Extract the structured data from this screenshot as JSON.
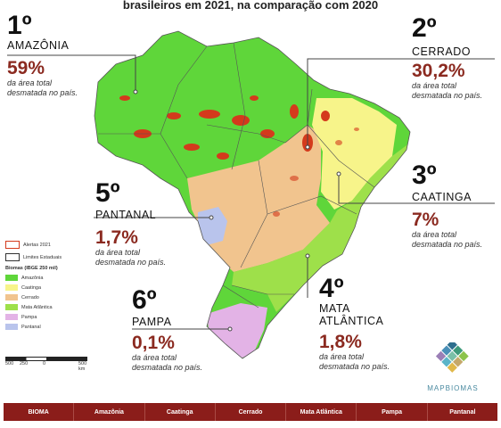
{
  "title": "brasileiros em 2021, na comparação com 2020",
  "rankings": [
    {
      "rank": "1º",
      "biome": "AMAZÔNIA",
      "pct": "59%",
      "desc1": "da área total",
      "desc2": "desmatada no país."
    },
    {
      "rank": "2º",
      "biome": "CERRADO",
      "pct": "30,2%",
      "desc1": "da área total",
      "desc2": "desmatada no país."
    },
    {
      "rank": "3º",
      "biome": "CAATINGA",
      "pct": "7%",
      "desc1": "da área total",
      "desc2": "desmatada no país."
    },
    {
      "rank": "4º",
      "biome1": "MATA",
      "biome2": "ATLÂNTICA",
      "pct": "1,8%",
      "desc1": "da área total",
      "desc2": "desmatada no país."
    },
    {
      "rank": "5º",
      "biome": "PANTANAL",
      "pct": "1,7%",
      "desc1": "da área total",
      "desc2": "desmatada no país."
    },
    {
      "rank": "6º",
      "biome": "PAMPA",
      "pct": "0,1%",
      "desc1": "da área total",
      "desc2": "desmatada no país."
    }
  ],
  "legend": {
    "alerts": "Alertas 2021",
    "limits": "Limites Estaduais",
    "biomes_title": "Biomas (IBGE 250 mil)",
    "items": [
      {
        "label": "Amazônia",
        "color": "#5fd63a"
      },
      {
        "label": "Caatinga",
        "color": "#f7f48a"
      },
      {
        "label": "Cerrado",
        "color": "#f1c48e"
      },
      {
        "label": "Mata Atlântica",
        "color": "#9ee04a"
      },
      {
        "label": "Pampa",
        "color": "#e3b3e6"
      },
      {
        "label": "Pantanal",
        "color": "#b9c4ec"
      }
    ],
    "alert_color": "#d43a1c"
  },
  "scale": {
    "t0": "500",
    "t1": "250",
    "t2": "0",
    "t3": "500 km"
  },
  "logo": "MAPBIOMAS",
  "table_headers": [
    "BIOMA",
    "Amazônia",
    "Caatinga",
    "Cerrado",
    "Mata Atlântica",
    "Pampa",
    "Pantanal"
  ]
}
